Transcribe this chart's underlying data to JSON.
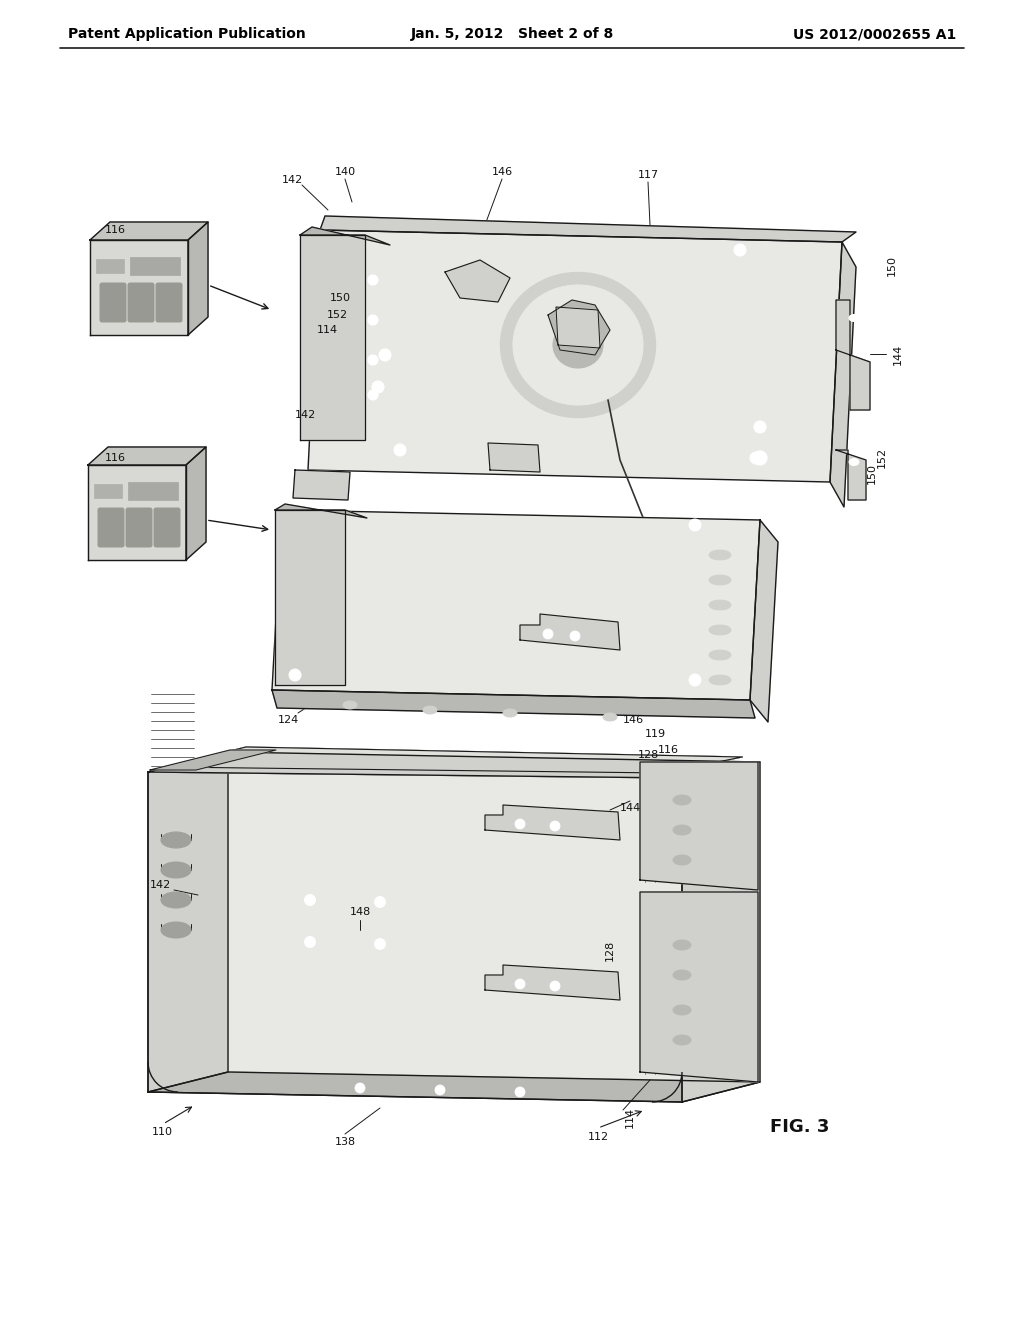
{
  "background_color": "#f5f5f0",
  "header_left": "Patent Application Publication",
  "header_center": "Jan. 5, 2012   Sheet 2 of 8",
  "header_right": "US 2012/0002655 A1",
  "fig_label": "FIG. 3",
  "title_fontsize": 10,
  "label_fontsize": 8,
  "fig_fontsize": 13,
  "line_color": "#1a1a1a",
  "fill_light": "#e8e8e5",
  "fill_mid": "#d0d0cc",
  "fill_dark": "#b8b8b4",
  "fill_darker": "#a0a09c"
}
